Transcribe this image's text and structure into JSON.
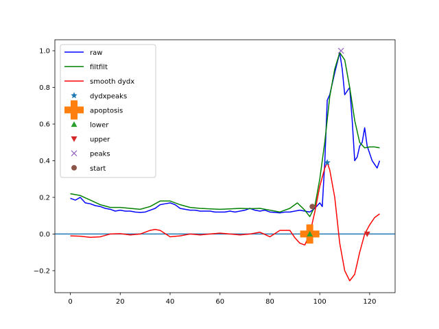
{
  "chart_data": {
    "type": "line",
    "xlim": [
      -6.2,
      130.2
    ],
    "ylim": [
      -0.32,
      1.06
    ],
    "x_ticks": [
      0,
      20,
      40,
      60,
      80,
      100,
      120
    ],
    "x_tick_labels": [
      "0",
      "20",
      "40",
      "60",
      "80",
      "100",
      "120"
    ],
    "y_ticks": [
      -0.2,
      0.0,
      0.2,
      0.4,
      0.6,
      0.8,
      1.0
    ],
    "y_tick_labels": [
      "−0.2",
      "0.0",
      "0.2",
      "0.4",
      "0.6",
      "0.8",
      "1.0"
    ],
    "grid": false,
    "legend_position": "upper-left",
    "hline": {
      "y": 0.0,
      "color": "#1f77b4"
    },
    "series": [
      {
        "name": "raw",
        "kind": "line",
        "color": "#0000ff",
        "x": [
          0,
          2,
          4,
          6,
          8,
          10,
          12,
          14,
          16,
          18,
          20,
          22,
          24,
          26,
          28,
          30,
          32,
          34,
          36,
          38,
          40,
          42,
          44,
          46,
          48,
          50,
          52,
          54,
          56,
          58,
          60,
          62,
          64,
          66,
          68,
          70,
          72,
          74,
          76,
          78,
          80,
          82,
          84,
          86,
          88,
          90,
          92,
          94,
          96,
          98,
          100,
          101,
          102,
          103,
          104,
          106,
          108,
          109,
          110,
          111,
          112,
          113,
          114,
          115,
          116,
          117,
          118,
          119,
          120,
          121,
          122,
          123,
          124
        ],
        "y": [
          0.195,
          0.185,
          0.2,
          0.17,
          0.165,
          0.155,
          0.15,
          0.14,
          0.135,
          0.125,
          0.13,
          0.125,
          0.125,
          0.12,
          0.118,
          0.12,
          0.13,
          0.14,
          0.16,
          0.165,
          0.17,
          0.16,
          0.14,
          0.135,
          0.13,
          0.13,
          0.125,
          0.125,
          0.125,
          0.12,
          0.12,
          0.12,
          0.125,
          0.12,
          0.125,
          0.13,
          0.14,
          0.13,
          0.125,
          0.13,
          0.12,
          0.118,
          0.115,
          0.12,
          0.12,
          0.125,
          0.13,
          0.125,
          0.12,
          0.14,
          0.17,
          0.15,
          0.39,
          0.73,
          0.76,
          0.88,
          0.99,
          0.9,
          0.76,
          0.78,
          0.8,
          0.62,
          0.4,
          0.42,
          0.48,
          0.5,
          0.58,
          0.48,
          0.44,
          0.4,
          0.38,
          0.36,
          0.4
        ]
      },
      {
        "name": "filtfilt",
        "kind": "line",
        "color": "#008000",
        "x": [
          0,
          4,
          8,
          12,
          16,
          20,
          24,
          28,
          32,
          36,
          40,
          44,
          48,
          52,
          56,
          60,
          64,
          68,
          72,
          76,
          80,
          84,
          88,
          91,
          94,
          96,
          98,
          100,
          102,
          104,
          106,
          108,
          110,
          112,
          114,
          116,
          118,
          120,
          122,
          124
        ],
        "y": [
          0.22,
          0.21,
          0.185,
          0.16,
          0.145,
          0.145,
          0.14,
          0.135,
          0.15,
          0.18,
          0.18,
          0.16,
          0.145,
          0.14,
          0.137,
          0.135,
          0.137,
          0.14,
          0.138,
          0.14,
          0.13,
          0.12,
          0.14,
          0.17,
          0.13,
          0.095,
          0.15,
          0.3,
          0.5,
          0.75,
          0.9,
          0.99,
          0.95,
          0.8,
          0.62,
          0.5,
          0.47,
          0.475,
          0.475,
          0.47
        ]
      },
      {
        "name": "smooth dydx",
        "kind": "line",
        "color": "#ff0000",
        "x": [
          0,
          4,
          8,
          12,
          16,
          20,
          24,
          28,
          32,
          34,
          36,
          40,
          44,
          48,
          52,
          56,
          60,
          64,
          68,
          72,
          76,
          80,
          84,
          88,
          90,
          92,
          94,
          96,
          98,
          100,
          102,
          103,
          104,
          106,
          108,
          110,
          112,
          114,
          116,
          118,
          120,
          122,
          124
        ],
        "y": [
          -0.01,
          -0.012,
          -0.018,
          -0.015,
          0.0,
          0.002,
          -0.005,
          0.0,
          0.02,
          0.025,
          0.02,
          -0.015,
          -0.01,
          0.0,
          -0.005,
          0.0,
          0.005,
          0.0,
          -0.005,
          0.0,
          0.01,
          -0.015,
          0.02,
          0.02,
          -0.02,
          -0.05,
          -0.06,
          0.0,
          0.12,
          0.26,
          0.36,
          0.39,
          0.35,
          0.2,
          -0.05,
          -0.2,
          -0.255,
          -0.22,
          -0.1,
          0.0,
          0.05,
          0.09,
          0.11
        ]
      },
      {
        "name": "dydxpeaks",
        "kind": "marker",
        "marker": "star",
        "color": "#1f77b4",
        "x": [
          103
        ],
        "y": [
          0.39
        ]
      },
      {
        "name": "apoptosis",
        "kind": "marker",
        "marker": "plus-big",
        "color": "#ff7f0e",
        "x": [
          96
        ],
        "y": [
          0.0
        ]
      },
      {
        "name": "lower",
        "kind": "marker",
        "marker": "triangle-up",
        "color": "#2ca02c",
        "x": [
          96
        ],
        "y": [
          0.0
        ]
      },
      {
        "name": "upper",
        "kind": "marker",
        "marker": "triangle-down",
        "color": "#d62728",
        "x": [
          119
        ],
        "y": [
          0.0
        ]
      },
      {
        "name": "peaks",
        "kind": "marker",
        "marker": "x",
        "color": "#9467bd",
        "x": [
          108.5
        ],
        "y": [
          1.0
        ]
      },
      {
        "name": "start",
        "kind": "marker",
        "marker": "circle",
        "color": "#8c564b",
        "x": [
          97
        ],
        "y": [
          0.15
        ]
      }
    ]
  }
}
